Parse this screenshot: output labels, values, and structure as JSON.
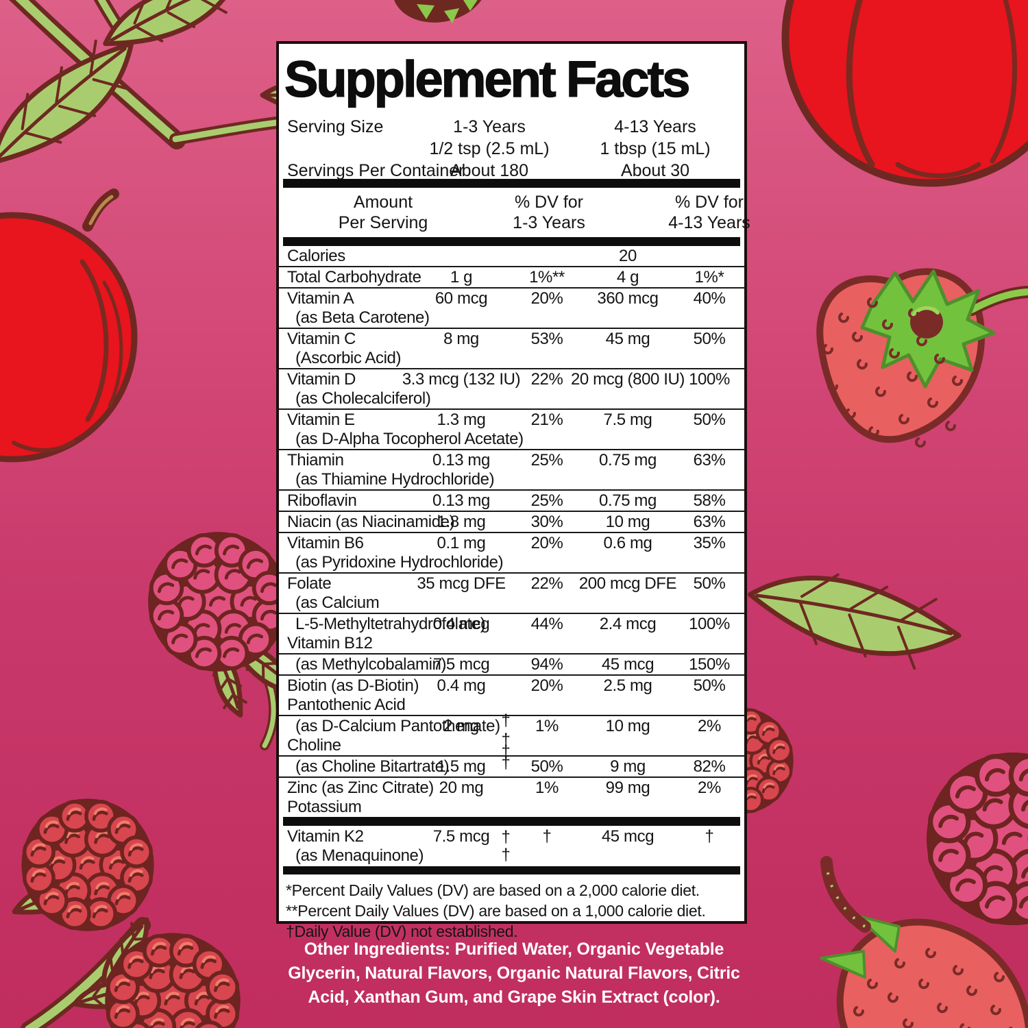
{
  "panel": {
    "title": "Supplement Facts",
    "serving": {
      "serving_size_label": "Serving Size",
      "servings_label": "Servings Per Container",
      "col1_age": "1-3 Years",
      "col1_measure": "1/2 tsp (2.5 mL)",
      "col1_servings": "About 180",
      "col2_age": "4-13 Years",
      "col2_measure": "1 tbsp (15 mL)",
      "col2_servings": "About 30"
    },
    "header": {
      "amount_l1": "Amount",
      "amount_l2": "Per Serving",
      "dv1_l1": "% DV for",
      "dv1_l2": "1-3 Years",
      "dv2_l1": "% DV for",
      "dv2_l2": "4-13 Years"
    },
    "table": {
      "dagger": "†",
      "rows": [
        {
          "name": "Calories",
          "amt2": "20"
        },
        {
          "name": "Total Carbohydrate",
          "amt1": "1 g",
          "dv1": "1%**",
          "amt2": "4 g",
          "dv2": "1%*"
        },
        {
          "name": "Vitamin A",
          "sub": "(as Beta Carotene)",
          "amt1": "60 mcg",
          "dv1": "20%",
          "amt2": "360 mcg",
          "dv2": "40%"
        },
        {
          "name": "Vitamin C",
          "sub": "(Ascorbic Acid)",
          "amt1": "8 mg",
          "dv1": "53%",
          "amt2": "45 mg",
          "dv2": "50%"
        },
        {
          "name": "Vitamin D",
          "sub": "(as Cholecalciferol)",
          "amt1": "3.3 mcg (132 IU)",
          "dv1": "22%",
          "amt2": "20 mcg (800 IU)",
          "dv2": "100%"
        },
        {
          "name": "Vitamin E",
          "sub": "(as D-Alpha Tocopherol Acetate)",
          "amt1": "1.3 mg",
          "dv1": "21%",
          "amt2": "7.5 mg",
          "dv2": "50%"
        },
        {
          "name": "Thiamin",
          "sub": "(as Thiamine Hydrochloride)",
          "amt1": "0.13 mg",
          "dv1": "25%",
          "amt2": "0.75 mg",
          "dv2": "63%"
        },
        {
          "name": "Riboflavin",
          "amt1": "0.13 mg",
          "dv1": "25%",
          "amt2": "0.75 mg",
          "dv2": "58%"
        },
        {
          "name": "Niacin (as Niacinamide)",
          "amt1": "1.8 mg",
          "dv1": "30%",
          "amt2": "10 mg",
          "dv2": "63%"
        },
        {
          "name": "Vitamin B6",
          "sub": "(as Pyridoxine Hydrochloride)",
          "amt1": "0.1 mg",
          "dv1": "20%",
          "amt2": "0.6 mg",
          "dv2": "35%"
        },
        {
          "name": "Folate",
          "sub": "(as Calcium",
          "amt1": "35 mcg DFE",
          "dv1": "22%",
          "amt2": "200 mcg DFE",
          "dv2": "50%"
        },
        {
          "name": "L-5-Methyltetrahydrofolate)",
          "ind": true,
          "sub": "Vitamin B12",
          "amt1": "0.4 mcg",
          "dv1": "44%",
          "amt2": "2.4 mcg",
          "dv2": "100%"
        },
        {
          "name": "(as Methylcobalamin)",
          "ind": true,
          "amt1": "7.5 mcg",
          "dv1": "94%",
          "amt2": "45 mcg",
          "dv2": "150%"
        },
        {
          "name": "Biotin (as D-Biotin)",
          "sub": "Pantothenic Acid",
          "amt1": "0.4 mg",
          "dv1": "20%",
          "amt2": "2.5 mg",
          "dv2": "50%"
        },
        {
          "name": "(as D-Calcium Pantothenate)",
          "ind": true,
          "sub": "Choline",
          "amt1": "2 mg",
          "dv1": "1%",
          "amt2": "10 mg",
          "dv2": "2%"
        },
        {
          "name": "(as Choline Bitartrate)",
          "ind": true,
          "amt1": "1.5 mg",
          "dv1": "50%",
          "amt2": "9 mg",
          "dv2": "82%"
        },
        {
          "name": "Zinc (as Zinc Citrate)",
          "sub": "Potassium",
          "amt1": "20 mg",
          "dv1": "1%",
          "amt2": "99 mg",
          "dv2": "2%"
        }
      ],
      "k2_row": {
        "name": "Vitamin K2",
        "sub": "(as Menaquinone)",
        "amt1": "7.5 mcg",
        "dv1": "†",
        "amt2": "45 mcg",
        "dv2": "†"
      }
    },
    "footnotes": [
      "*Percent Daily Values (DV) are based on a 2,000 calorie diet.",
      "**Percent Daily Values (DV) are based on a 1,000 calorie diet.",
      "†Daily Value (DV) not established."
    ]
  },
  "other_ingredients": {
    "lines": [
      "Other Ingredients: Purified Water, Organic Vegetable",
      "Glycerin, Natural Flavors, Organic Natural Flavors, Citric",
      "Acid, Xanthan Gum, and Grape Skin Extract (color)."
    ]
  },
  "colors": {
    "background_top": "#DD6089",
    "background_bottom": "#C02D5E",
    "panel": "#FFFFFF",
    "ink": "#141414",
    "ingredients_text": "#FFFFFF",
    "leaf_green": "#A9CD6E",
    "outline_brown": "#6E2822",
    "apple_red": "#E8141E",
    "strawberry_red": "#E96060",
    "raspberry_red": "#D8464F",
    "raspberry_pink": "#E0517F"
  },
  "illustrations": [
    "branch-top-left",
    "leaf-illustration",
    "apple-left",
    "apple-top-right",
    "strawberry-right",
    "strawberry-bottom-right",
    "raspberry-illustration",
    "calyx-top"
  ]
}
